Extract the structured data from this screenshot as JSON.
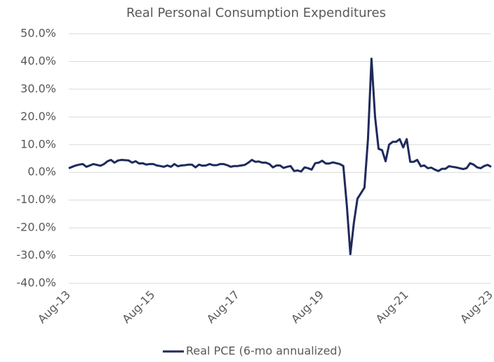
{
  "chart_data": {
    "type": "line",
    "title": "Real Personal Consumption Expenditures",
    "categories": [
      "Aug-13",
      null,
      null,
      null,
      null,
      null,
      null,
      null,
      null,
      null,
      null,
      null,
      null,
      null,
      null,
      null,
      null,
      null,
      null,
      null,
      null,
      null,
      null,
      null,
      "Aug-15",
      null,
      null,
      null,
      null,
      null,
      null,
      null,
      null,
      null,
      null,
      null,
      null,
      null,
      null,
      null,
      null,
      null,
      null,
      null,
      null,
      null,
      null,
      null,
      "Aug-17",
      null,
      null,
      null,
      null,
      null,
      null,
      null,
      null,
      null,
      null,
      null,
      null,
      null,
      null,
      null,
      null,
      null,
      null,
      null,
      null,
      null,
      null,
      null,
      "Aug-19",
      null,
      null,
      null,
      null,
      null,
      null,
      null,
      null,
      null,
      null,
      null,
      null,
      null,
      null,
      null,
      null,
      null,
      null,
      null,
      null,
      null,
      null,
      null,
      "Aug-21",
      null,
      null,
      null,
      null,
      null,
      null,
      null,
      null,
      null,
      null,
      null,
      null,
      null,
      null,
      null,
      null,
      null,
      null,
      null,
      null,
      null,
      null,
      null,
      "Aug-23"
    ],
    "series": [
      {
        "name": "Real PCE (6-mo annualized)",
        "color": "#1f2a5c",
        "values": [
          1.5,
          2.0,
          2.5,
          2.8,
          3.0,
          2.0,
          2.5,
          3.0,
          2.7,
          2.4,
          3.0,
          4.0,
          4.5,
          3.5,
          4.3,
          4.5,
          4.4,
          4.3,
          3.5,
          4.0,
          3.2,
          3.3,
          2.8,
          3.0,
          3.0,
          2.5,
          2.3,
          2.0,
          2.5,
          2.0,
          3.0,
          2.2,
          2.5,
          2.6,
          2.8,
          2.8,
          1.8,
          2.8,
          2.4,
          2.5,
          3.0,
          2.6,
          2.6,
          3.0,
          3.0,
          2.6,
          2.0,
          2.3,
          2.3,
          2.5,
          2.7,
          3.5,
          4.5,
          3.8,
          3.9,
          3.5,
          3.5,
          3.0,
          1.8,
          2.5,
          2.5,
          1.6,
          2.0,
          2.3,
          0.5,
          0.7,
          0.3,
          1.8,
          1.5,
          1.0,
          3.3,
          3.5,
          4.2,
          3.2,
          3.2,
          3.6,
          3.3,
          3.0,
          2.3,
          -12,
          -29.5,
          -18,
          -9.5,
          -7.5,
          -5.5,
          12,
          41,
          20,
          8.5,
          8,
          4,
          10,
          11,
          11,
          12,
          9,
          12,
          3.8,
          3.8,
          4.5,
          2.2,
          2.5,
          1.5,
          1.7,
          1.0,
          0.5,
          1.3,
          1.3,
          2.2,
          2.0,
          1.8,
          1.5,
          1.2,
          1.5,
          3.3,
          2.8,
          1.8,
          1.5,
          2.3,
          2.7,
          2.0
        ]
      }
    ],
    "ylim": [
      -40,
      50
    ],
    "yticks": [
      {
        "value": -40,
        "label": "-40.0%"
      },
      {
        "value": -30,
        "label": "-30.0%"
      },
      {
        "value": -20,
        "label": "-20.0%"
      },
      {
        "value": -10,
        "label": "-10.0%"
      },
      {
        "value": 0,
        "label": "0.0%"
      },
      {
        "value": 10,
        "label": "10.0%"
      },
      {
        "value": 20,
        "label": "20.0%"
      },
      {
        "value": 30,
        "label": "30.0%"
      },
      {
        "value": 40,
        "label": "40.0%"
      },
      {
        "value": 50,
        "label": "50.0%"
      }
    ],
    "grid": true,
    "legend": "bottom"
  }
}
